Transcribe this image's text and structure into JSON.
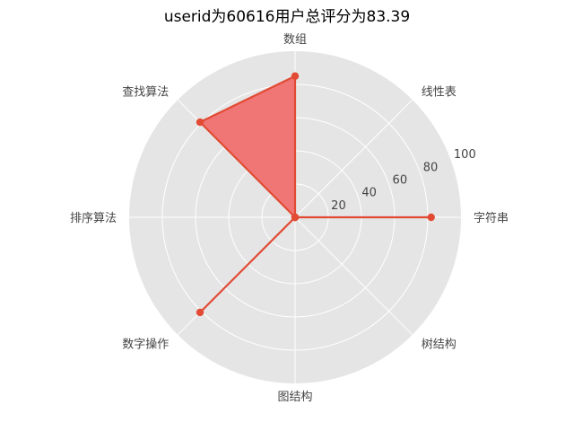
{
  "chart_data": {
    "type": "radar",
    "title": "userid为60616用户总评分为83.39",
    "categories": [
      "字符串",
      "线性表",
      "数组",
      "查找算法",
      "排序算法",
      "数字操作",
      "图结构",
      "树结构"
    ],
    "series": [
      {
        "values": [
          82,
          0,
          85,
          81,
          0,
          81,
          0,
          0
        ]
      }
    ],
    "rlim": [
      0,
      100
    ],
    "r_ticks": [
      20,
      40,
      60,
      80,
      100
    ],
    "grid": true,
    "colors": {
      "background": "#E5E5E5",
      "grid": "#FFFFFF",
      "line": "#E24A33",
      "fill": "#F07070"
    }
  }
}
